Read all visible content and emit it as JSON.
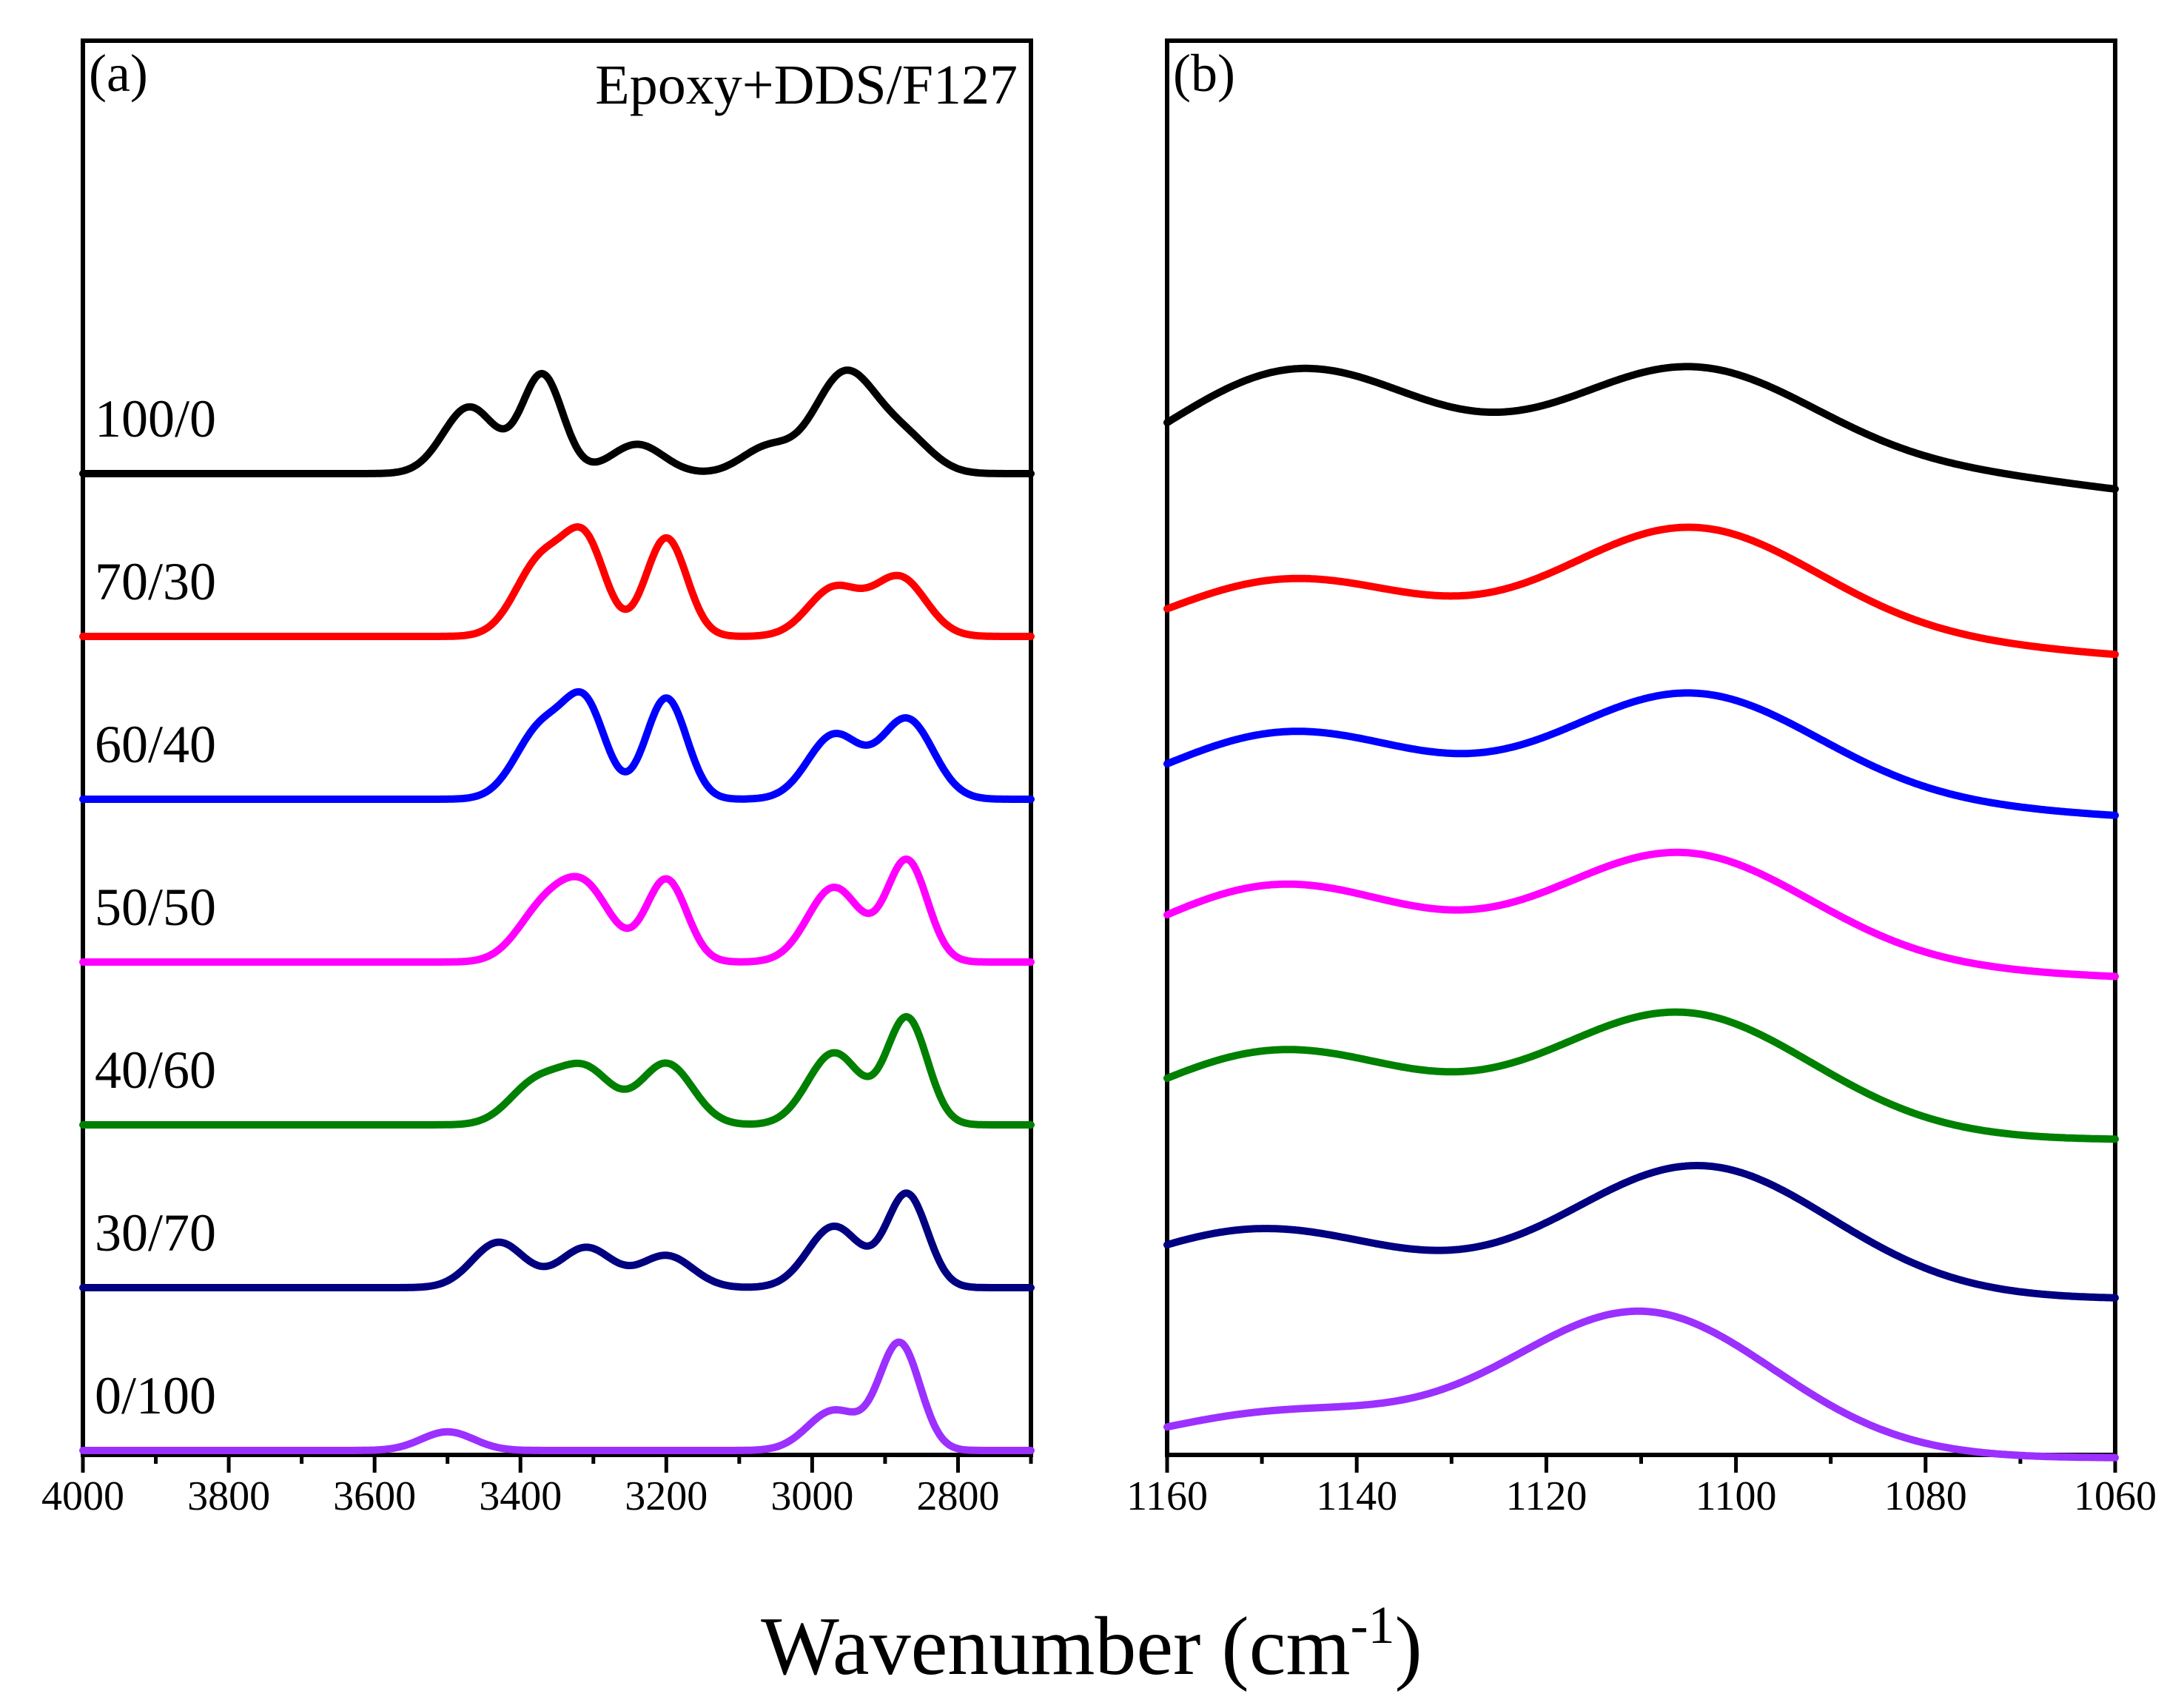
{
  "chart_data": [
    {
      "type": "line",
      "panel": "(a)",
      "annotation": "Epoxy+DDS/F127",
      "xlim": [
        4000,
        2700
      ],
      "x_reversed": true,
      "x_ticks": [
        4000,
        3800,
        3600,
        3400,
        3200,
        3000,
        2800
      ],
      "y_ticks_shown": false,
      "series": [
        {
          "name": "100/0",
          "color": "#000000",
          "peaks": [
            {
              "x": 3470,
              "h": 1.25
            },
            {
              "x": 3370,
              "h": 1.85
            },
            {
              "x": 3240,
              "h": 0.55
            },
            {
              "x": 3060,
              "h": 0.5
            },
            {
              "x": 2970,
              "h": 1.25
            },
            {
              "x": 2930,
              "h": 0.95
            },
            {
              "x": 2870,
              "h": 0.6
            }
          ],
          "baseline_offset": 0
        },
        {
          "name": "70/30",
          "color": "#ff0000",
          "peaks": [
            {
              "x": 3370,
              "h": 1.45
            },
            {
              "x": 3310,
              "h": 1.6
            },
            {
              "x": 3200,
              "h": 1.85
            },
            {
              "x": 2970,
              "h": 0.9
            },
            {
              "x": 2880,
              "h": 1.1
            }
          ],
          "baseline_offset": 1
        },
        {
          "name": "60/40",
          "color": "#0000ff",
          "peaks": [
            {
              "x": 3370,
              "h": 1.35
            },
            {
              "x": 3310,
              "h": 1.6
            },
            {
              "x": 3200,
              "h": 1.9
            },
            {
              "x": 2970,
              "h": 1.2
            },
            {
              "x": 2870,
              "h": 1.5
            }
          ],
          "baseline_offset": 2
        },
        {
          "name": "50/50",
          "color": "#ff00ff",
          "peaks": [
            {
              "x": 3370,
              "h": 0.9
            },
            {
              "x": 3310,
              "h": 1.3
            },
            {
              "x": 3200,
              "h": 1.55
            },
            {
              "x": 2970,
              "h": 1.4
            },
            {
              "x": 2870,
              "h": 1.9
            }
          ],
          "baseline_offset": 3
        },
        {
          "name": "40/60",
          "color": "#008000",
          "peaks": [
            {
              "x": 3380,
              "h": 0.75
            },
            {
              "x": 3310,
              "h": 1.0
            },
            {
              "x": 3200,
              "h": 1.15
            },
            {
              "x": 2970,
              "h": 1.35
            },
            {
              "x": 2870,
              "h": 2.0
            }
          ],
          "baseline_offset": 4
        },
        {
          "name": "30/70",
          "color": "#000080",
          "peaks": [
            {
              "x": 3430,
              "h": 0.85
            },
            {
              "x": 3310,
              "h": 0.75
            },
            {
              "x": 3200,
              "h": 0.6
            },
            {
              "x": 2970,
              "h": 1.15
            },
            {
              "x": 2870,
              "h": 1.75
            }
          ],
          "baseline_offset": 5
        },
        {
          "name": "0/100",
          "color": "#9b30ff",
          "peaks": [
            {
              "x": 3500,
              "h": 0.35
            },
            {
              "x": 2970,
              "h": 0.75
            },
            {
              "x": 2880,
              "h": 2.0
            }
          ],
          "baseline_offset": 6
        }
      ]
    },
    {
      "type": "line",
      "panel": "(b)",
      "xlim": [
        1160,
        1060
      ],
      "x_reversed": true,
      "x_ticks": [
        1160,
        1140,
        1120,
        1100,
        1080,
        1060
      ],
      "y_ticks_shown": false,
      "series": [
        {
          "color": "#000000",
          "peaks": [
            {
              "x": 1146,
              "h": 2.1
            },
            {
              "x": 1105,
              "h": 2.1
            },
            {
              "x": 1074,
              "h": 0.35
            }
          ],
          "baseline_offset": 0
        },
        {
          "color": "#ff0000",
          "peaks": [
            {
              "x": 1147,
              "h": 1.3
            },
            {
              "x": 1105,
              "h": 2.1
            },
            {
              "x": 1075,
              "h": 0.2
            }
          ],
          "baseline_offset": 1
        },
        {
          "color": "#0000ff",
          "peaks": [
            {
              "x": 1147,
              "h": 1.4
            },
            {
              "x": 1105,
              "h": 2.0
            },
            {
              "x": 1075,
              "h": 0.15
            }
          ],
          "baseline_offset": 2
        },
        {
          "color": "#ff00ff",
          "peaks": [
            {
              "x": 1148,
              "h": 1.5
            },
            {
              "x": 1106,
              "h": 2.0
            },
            {
              "x": 1075,
              "h": 0.1
            }
          ],
          "baseline_offset": 3
        },
        {
          "color": "#008000",
          "peaks": [
            {
              "x": 1148,
              "h": 1.4
            },
            {
              "x": 1106,
              "h": 2.0
            }
          ],
          "baseline_offset": 4
        },
        {
          "color": "#000080",
          "peaks": [
            {
              "x": 1150,
              "h": 1.1
            },
            {
              "x": 1104,
              "h": 2.1
            }
          ],
          "baseline_offset": 5
        },
        {
          "color": "#9b30ff",
          "peaks": [
            {
              "x": 1148,
              "h": 0.7
            },
            {
              "x": 1110,
              "h": 2.3
            }
          ],
          "baseline_offset": 6
        }
      ]
    }
  ],
  "xlabel": "Wavenumber (cm",
  "xlabel_sup": "-1",
  "xlabel_end": ")"
}
